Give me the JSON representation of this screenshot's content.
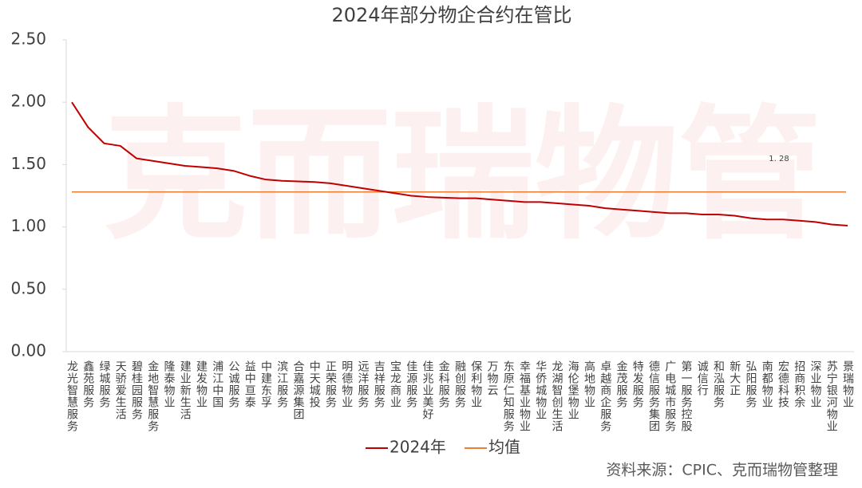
{
  "chart_data": {
    "type": "line",
    "title": "2024年部分物企合约在管比",
    "categories": [
      "龙光智慧服务",
      "鑫苑服务",
      "绿城服务",
      "天骄爱生活",
      "碧桂园服务",
      "金地智慧服务",
      "隆泰物业",
      "建业新生活",
      "建发物业",
      "浦江中国",
      "公诚服务",
      "益中亘泰",
      "中建东孚",
      "滨江服务",
      "合嘉源集团",
      "中天城投",
      "正荣服务",
      "明德物业",
      "远洋服务",
      "吉祥服务",
      "宝龙商业",
      "佳源服务",
      "佳兆业美好",
      "金科服务",
      "融创服务",
      "保利物业",
      "万物云",
      "东原仁知服务",
      "幸福基业物业",
      "华侨城物业",
      "龙湖智创生活",
      "海伦堡物业",
      "高地物业",
      "卓越商企服务",
      "金茂服务",
      "特发服务",
      "德信服务集团",
      "广电城市服务",
      "第一服务控股",
      "诚信行",
      "和泓服务",
      "新大正",
      "弘阳服务",
      "南都物业",
      "宏德科技",
      "招商积余",
      "深业物业",
      "苏宁银河物业",
      "景瑞物业"
    ],
    "series": [
      {
        "name": "2024年",
        "color": "#c00000",
        "values": [
          2.0,
          1.8,
          1.67,
          1.65,
          1.55,
          1.53,
          1.51,
          1.49,
          1.48,
          1.47,
          1.45,
          1.41,
          1.38,
          1.37,
          1.365,
          1.36,
          1.35,
          1.33,
          1.31,
          1.29,
          1.27,
          1.25,
          1.24,
          1.235,
          1.23,
          1.23,
          1.22,
          1.21,
          1.2,
          1.2,
          1.19,
          1.18,
          1.17,
          1.15,
          1.14,
          1.13,
          1.12,
          1.11,
          1.11,
          1.1,
          1.1,
          1.09,
          1.07,
          1.06,
          1.06,
          1.05,
          1.04,
          1.02,
          1.01
        ]
      }
    ],
    "mean_line": {
      "name": "均值",
      "color": "#ed7d31",
      "value": 1.28,
      "value_label": "1. 28"
    },
    "ylim": [
      0,
      2.5
    ],
    "yticks": [
      {
        "value": 0,
        "label": "0.00"
      },
      {
        "value": 0.5,
        "label": "0.50"
      },
      {
        "value": 1,
        "label": "1.00"
      },
      {
        "value": 1.5,
        "label": "1.50"
      },
      {
        "value": 2,
        "label": "2.00"
      },
      {
        "value": 2.5,
        "label": "2.50"
      }
    ],
    "source": "资料来源：CPIC、克而瑞物管整理",
    "watermark": "克而瑞物管"
  }
}
